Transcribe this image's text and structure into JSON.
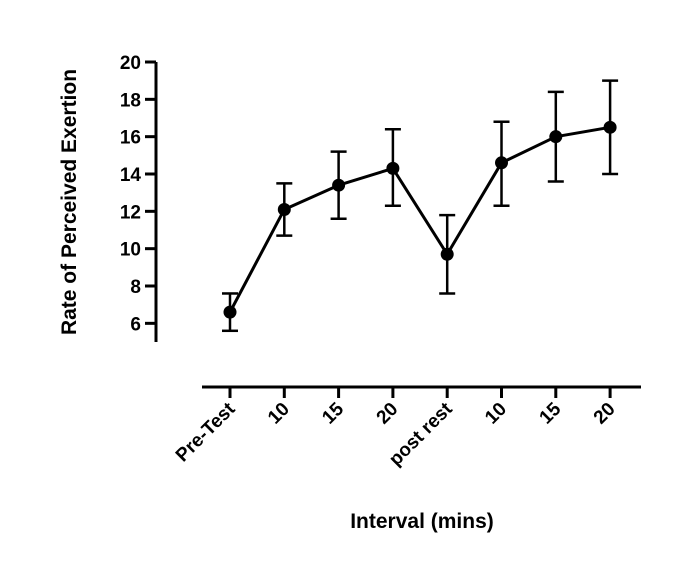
{
  "chart_data": {
    "type": "line",
    "title": "",
    "xlabel": "Interval (mins)",
    "ylabel": "Rate of Perceived Exertion",
    "categories": [
      "Pre-Test",
      "10",
      "15",
      "20",
      "post rest",
      "10",
      "15",
      "20"
    ],
    "ylim": [
      5,
      20
    ],
    "yticks": [
      6,
      8,
      10,
      12,
      14,
      16,
      18,
      20
    ],
    "grid": false,
    "series": [
      {
        "values": [
          6.6,
          12.1,
          13.4,
          14.3,
          9.7,
          14.6,
          16.0,
          16.5
        ],
        "error_low": [
          5.6,
          10.7,
          11.6,
          12.3,
          7.6,
          12.3,
          13.6,
          14.0
        ],
        "error_high": [
          7.6,
          13.5,
          15.2,
          16.4,
          11.8,
          16.8,
          18.4,
          19.0
        ],
        "color": "#000000"
      }
    ]
  }
}
